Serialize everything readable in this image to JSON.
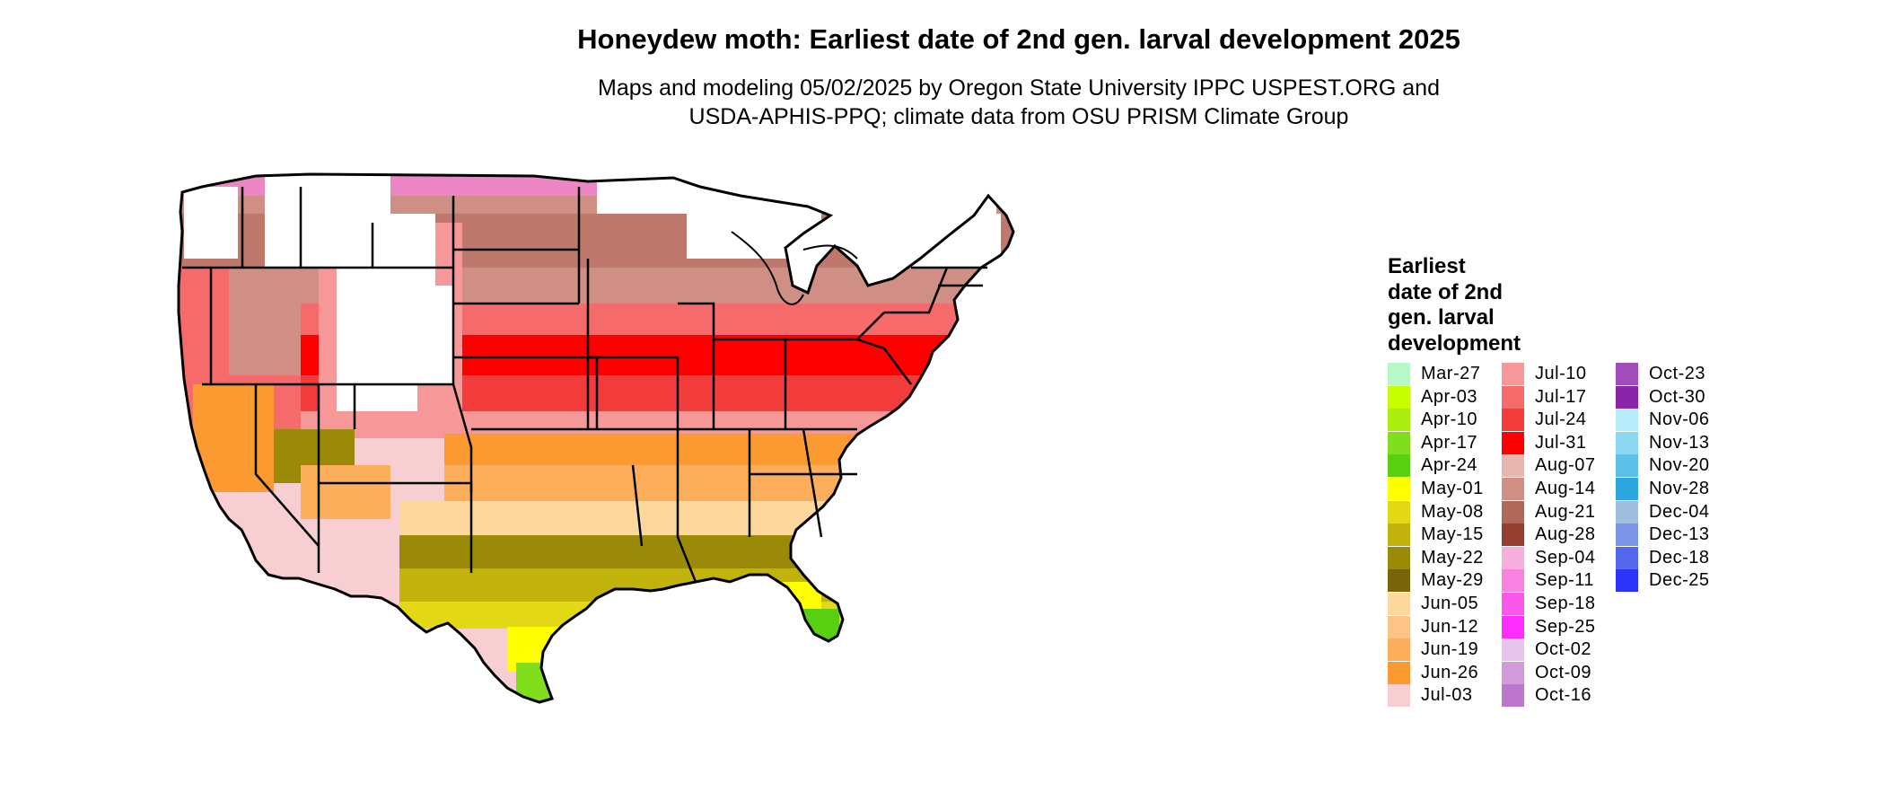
{
  "map": {
    "title": "Honeydew moth: Earliest date of 2nd gen. larval development 2025",
    "subtitle_lines": [
      "Maps and modeling 05/02/2025 by Oregon State University IPPC USPEST.ORG and",
      "USDA-APHIS-PPQ; climate data from OSU PRISM Climate Group"
    ],
    "region": "Contiguous United States",
    "legend": {
      "title_lines": [
        "Earliest",
        "date of 2nd",
        "gen. larval",
        "development"
      ],
      "columns": [
        [
          {
            "label": "Mar-27",
            "color": "#b7f7c8"
          },
          {
            "label": "Apr-03",
            "color": "#c8ff00"
          },
          {
            "label": "Apr-10",
            "color": "#aaee10"
          },
          {
            "label": "Apr-17",
            "color": "#80de1c"
          },
          {
            "label": "Apr-24",
            "color": "#58cf10"
          },
          {
            "label": "May-01",
            "color": "#ffff00"
          },
          {
            "label": "May-08",
            "color": "#e2d816"
          },
          {
            "label": "May-15",
            "color": "#c2b20c"
          },
          {
            "label": "May-22",
            "color": "#9a8a08"
          },
          {
            "label": "May-29",
            "color": "#7a6408"
          },
          {
            "label": "Jun-05",
            "color": "#fdd89e"
          },
          {
            "label": "Jun-12",
            "color": "#fcc486"
          },
          {
            "label": "Jun-19",
            "color": "#fcae5a"
          },
          {
            "label": "Jun-26",
            "color": "#fc9a32"
          },
          {
            "label": "Jul-03",
            "color": "#f7cfd2"
          }
        ],
        [
          {
            "label": "Jul-10",
            "color": "#f79898"
          },
          {
            "label": "Jul-17",
            "color": "#f56a6a"
          },
          {
            "label": "Jul-24",
            "color": "#f23c3c"
          },
          {
            "label": "Jul-31",
            "color": "#ff0000"
          },
          {
            "label": "Aug-07",
            "color": "#e8b6ae"
          },
          {
            "label": "Aug-14",
            "color": "#cf8f84"
          },
          {
            "label": "Aug-21",
            "color": "#b0685a"
          },
          {
            "label": "Aug-28",
            "color": "#943e30"
          },
          {
            "label": "Sep-04",
            "color": "#f9aee0"
          },
          {
            "label": "Sep-11",
            "color": "#f982e0"
          },
          {
            "label": "Sep-18",
            "color": "#f958ea"
          },
          {
            "label": "Sep-25",
            "color": "#ff2cff"
          },
          {
            "label": "Oct-02",
            "color": "#e6c4ec"
          },
          {
            "label": "Oct-09",
            "color": "#d29ad8"
          },
          {
            "label": "Oct-16",
            "color": "#bc76cc"
          }
        ],
        [
          {
            "label": "Oct-23",
            "color": "#a24cbc"
          },
          {
            "label": "Oct-30",
            "color": "#8a24a8"
          },
          {
            "label": "Nov-06",
            "color": "#b8ecfa"
          },
          {
            "label": "Nov-13",
            "color": "#8cd8f2"
          },
          {
            "label": "Nov-20",
            "color": "#5cc0e8"
          },
          {
            "label": "Nov-28",
            "color": "#2ca6de"
          },
          {
            "label": "Dec-04",
            "color": "#a2bede"
          },
          {
            "label": "Dec-13",
            "color": "#7c94e6"
          },
          {
            "label": "Dec-18",
            "color": "#5468ee"
          },
          {
            "label": "Dec-25",
            "color": "#2c34f8"
          }
        ]
      ]
    }
  }
}
